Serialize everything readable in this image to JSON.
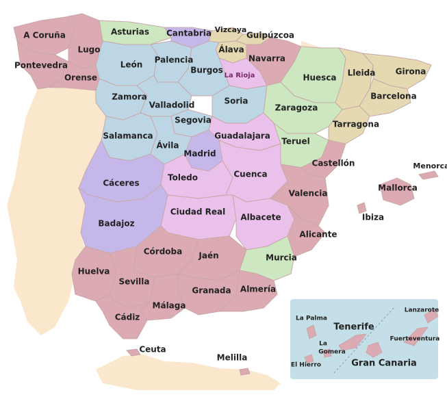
{
  "colors": {
    "water": "#ffffff",
    "foreign_land": "#fbe8cc",
    "galicia_andalucia": "#dcaab2",
    "castilla_leon": "#bcd6e6",
    "north_green": "#cde7c0",
    "catalonia_tan": "#e4d9b1",
    "madrid_extremadura_purple": "#c6b7ea",
    "castilla_la_mancha_pink": "#e9c1ea",
    "canary_box": "#c5dfe8"
  },
  "provinces": {
    "a_coruna": "A Coruña",
    "lugo": "Lugo",
    "pontevedra": "Pontevedra",
    "orense": "Orense",
    "asturias": "Asturias",
    "cantabria": "Cantabria",
    "vizcaya": "Vizcaya",
    "guipuzcoa": "Guipúzcoa",
    "alava": "Álava",
    "navarra": "Navarra",
    "leon": "León",
    "palencia": "Palencia",
    "burgos": "Burgos",
    "la_rioja": "La Rioja",
    "huesca": "Huesca",
    "lleida": "Lleida",
    "girona": "Girona",
    "barcelona": "Barcelona",
    "zamora": "Zamora",
    "valladolid": "Valladolid",
    "soria": "Soria",
    "zaragoza": "Zaragoza",
    "tarragona": "Tarragona",
    "segovia": "Segovia",
    "salamanca": "Salamanca",
    "guadalajara": "Guadalajara",
    "avila": "Ávila",
    "madrid": "Madrid",
    "teruel": "Teruel",
    "castellon": "Castellón",
    "menorca": "Menorca",
    "caceres": "Cáceres",
    "toledo": "Toledo",
    "cuenca": "Cuenca",
    "mallorca": "Mallorca",
    "valencia": "Valencia",
    "ibiza": "Ibiza",
    "badajoz": "Badajoz",
    "ciudad_real": "Ciudad Real",
    "albacete": "Albacete",
    "alicante": "Alicante",
    "cordoba": "Córdoba",
    "jaen": "Jaén",
    "murcia": "Murcia",
    "huelva": "Huelva",
    "sevilla": "Sevilla",
    "granada": "Granada",
    "almeria": "Almería",
    "malaga": "Málaga",
    "cadiz": "Cádiz",
    "ceuta": "Ceuta",
    "melilla": "Melilla"
  },
  "canary_islands": {
    "lanzarote": "Lanzarote",
    "la_palma": "La Palma",
    "tenerife": "Tenerife",
    "fuerteventura": "Fuerteventura",
    "la_gomera_line1": "La",
    "la_gomera_line2": "Gomera",
    "el_hierro": "El Hierro",
    "gran_canaria": "Gran Canaria"
  }
}
